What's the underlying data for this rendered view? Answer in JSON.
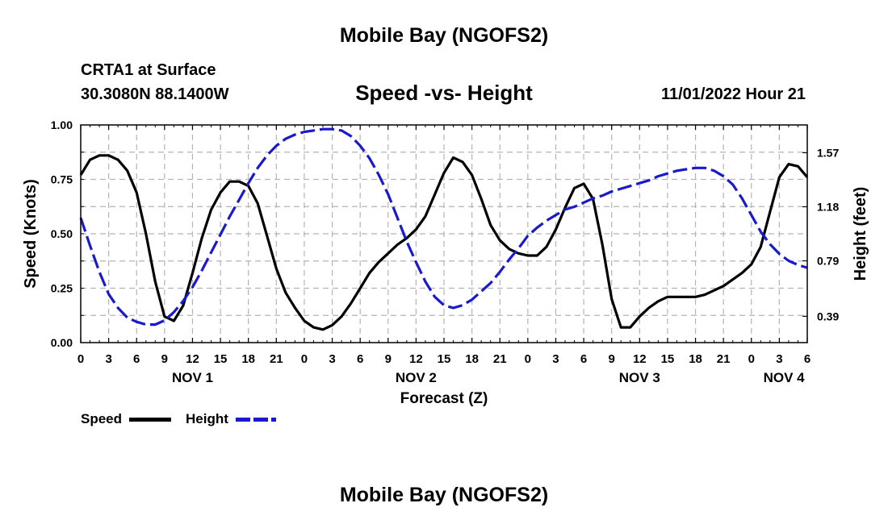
{
  "header": {
    "title": "Mobile Bay (NGOFS2)",
    "station": "CRTA1 at Surface",
    "coords": "30.3080N  88.1400W",
    "chart_title": "Speed -vs- Height",
    "datetime": "11/01/2022 Hour 21"
  },
  "footer": {
    "title": "Mobile Bay (NGOFS2)"
  },
  "legend": {
    "speed_label": "Speed",
    "height_label": "Height"
  },
  "colors": {
    "speed": "#000000",
    "height": "#1a1acc",
    "grid": "#b4b4b4"
  },
  "chart_data": {
    "type": "line",
    "title": "Speed -vs- Height",
    "xlabel": "Forecast (Z)",
    "ylabel": "Speed (Knots)",
    "y2label": "Height (feet)",
    "xlim": [
      0,
      78
    ],
    "ylim": [
      0,
      1
    ],
    "y2lim": [
      0.2,
      1.77
    ],
    "x_ticks": [
      0,
      3,
      6,
      9,
      12,
      15,
      18,
      21,
      24,
      27,
      30,
      33,
      36,
      39,
      42,
      45,
      48,
      51,
      54,
      57,
      60,
      63,
      66,
      69,
      72,
      75,
      78
    ],
    "x_tick_labels": [
      "0",
      "3",
      "6",
      "9",
      "12",
      "15",
      "18",
      "21",
      "0",
      "3",
      "6",
      "9",
      "12",
      "15",
      "18",
      "21",
      "0",
      "3",
      "6",
      "9",
      "12",
      "15",
      "18",
      "21",
      "0",
      "3",
      "6"
    ],
    "day_labels": [
      {
        "x": 12,
        "label": "NOV 1"
      },
      {
        "x": 36,
        "label": "NOV 2"
      },
      {
        "x": 60,
        "label": "NOV 3"
      },
      {
        "x": 75.5,
        "label": "NOV 4"
      }
    ],
    "y_ticks": [
      0,
      0.25,
      0.5,
      0.75,
      1.0
    ],
    "y_tick_labels": [
      "0.00",
      "0.25",
      "0.50",
      "0.75",
      "1.00"
    ],
    "y2_ticks": [
      0.39,
      0.79,
      1.18,
      1.57
    ],
    "y2_tick_labels": [
      "0.39",
      "0.79",
      "1.18",
      "1.57"
    ],
    "series": [
      {
        "name": "Speed",
        "axis": "left",
        "style": "solid",
        "x": [
          0,
          1,
          2,
          3,
          4,
          5,
          6,
          7,
          8,
          9,
          10,
          11,
          12,
          13,
          14,
          15,
          16,
          17,
          18,
          19,
          20,
          21,
          22,
          23,
          24,
          25,
          26,
          27,
          28,
          29,
          30,
          31,
          32,
          33,
          34,
          35,
          36,
          37,
          38,
          39,
          40,
          41,
          42,
          43,
          44,
          45,
          46,
          47,
          48,
          49,
          50,
          51,
          52,
          53,
          54,
          55,
          56,
          57,
          58,
          59,
          60,
          61,
          62,
          63,
          64,
          65,
          66,
          67,
          68,
          69,
          70,
          71,
          72,
          73,
          74,
          75,
          76,
          77,
          78
        ],
        "values": [
          0.77,
          0.84,
          0.86,
          0.86,
          0.84,
          0.79,
          0.69,
          0.5,
          0.28,
          0.12,
          0.1,
          0.17,
          0.32,
          0.48,
          0.61,
          0.69,
          0.74,
          0.74,
          0.72,
          0.64,
          0.49,
          0.34,
          0.23,
          0.16,
          0.1,
          0.07,
          0.06,
          0.08,
          0.12,
          0.18,
          0.25,
          0.32,
          0.37,
          0.41,
          0.45,
          0.48,
          0.52,
          0.58,
          0.68,
          0.78,
          0.85,
          0.83,
          0.77,
          0.66,
          0.54,
          0.47,
          0.43,
          0.41,
          0.4,
          0.4,
          0.44,
          0.52,
          0.62,
          0.71,
          0.73,
          0.66,
          0.45,
          0.2,
          0.07,
          0.07,
          0.12,
          0.16,
          0.19,
          0.21,
          0.21,
          0.21,
          0.21,
          0.22,
          0.24,
          0.26,
          0.29,
          0.32,
          0.36,
          0.44,
          0.6,
          0.76,
          0.82,
          0.81,
          0.76
        ]
      },
      {
        "name": "Height",
        "axis": "right",
        "style": "dashed",
        "x": [
          0,
          1,
          2,
          3,
          4,
          5,
          6,
          7,
          8,
          9,
          10,
          11,
          12,
          13,
          14,
          15,
          16,
          17,
          18,
          19,
          20,
          21,
          22,
          23,
          24,
          25,
          26,
          27,
          28,
          29,
          30,
          31,
          32,
          33,
          34,
          35,
          36,
          37,
          38,
          39,
          40,
          41,
          42,
          43,
          44,
          45,
          46,
          47,
          48,
          49,
          50,
          51,
          52,
          53,
          54,
          55,
          56,
          57,
          58,
          59,
          60,
          61,
          62,
          63,
          64,
          65,
          66,
          67,
          68,
          69,
          70,
          71,
          72,
          73,
          74,
          75,
          76,
          77,
          78
        ],
        "values": [
          1.1,
          0.9,
          0.71,
          0.55,
          0.45,
          0.38,
          0.35,
          0.33,
          0.33,
          0.36,
          0.42,
          0.5,
          0.6,
          0.72,
          0.85,
          0.98,
          1.11,
          1.23,
          1.35,
          1.46,
          1.55,
          1.62,
          1.67,
          1.7,
          1.72,
          1.73,
          1.74,
          1.74,
          1.73,
          1.69,
          1.62,
          1.53,
          1.41,
          1.27,
          1.1,
          0.93,
          0.78,
          0.64,
          0.53,
          0.47,
          0.45,
          0.47,
          0.51,
          0.57,
          0.63,
          0.71,
          0.8,
          0.88,
          0.97,
          1.03,
          1.08,
          1.12,
          1.16,
          1.18,
          1.21,
          1.24,
          1.26,
          1.29,
          1.31,
          1.33,
          1.35,
          1.37,
          1.4,
          1.42,
          1.44,
          1.45,
          1.46,
          1.46,
          1.44,
          1.4,
          1.34,
          1.24,
          1.12,
          1.0,
          0.91,
          0.84,
          0.79,
          0.76,
          0.74
        ]
      }
    ]
  }
}
